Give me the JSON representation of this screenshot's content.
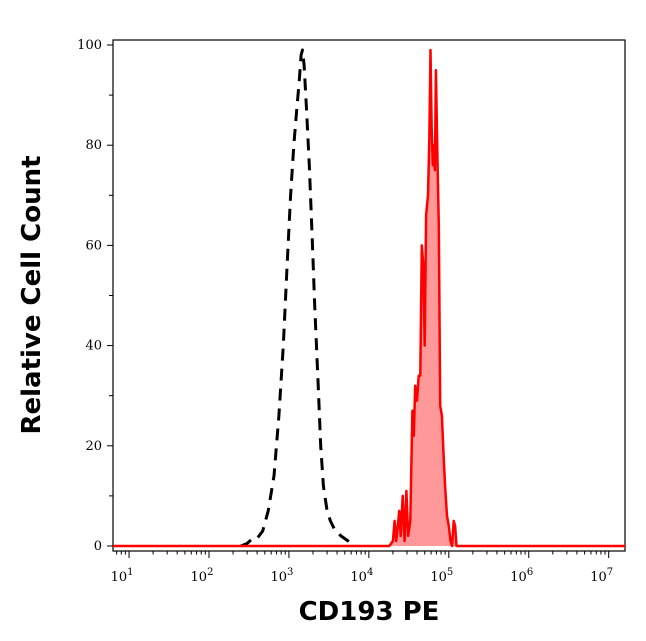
{
  "chart_data": {
    "type": "area",
    "xlabel": "CD193 PE",
    "ylabel": "Relative Cell Count",
    "xscale": "log",
    "xlim": [
      6.3,
      16000000
    ],
    "ylim": [
      -1,
      101
    ],
    "x_ticks": [
      {
        "base": "10",
        "exp": "1",
        "value": 10
      },
      {
        "base": "10",
        "exp": "2",
        "value": 100
      },
      {
        "base": "10",
        "exp": "3",
        "value": 1000
      },
      {
        "base": "10",
        "exp": "4",
        "value": 10000
      },
      {
        "base": "10",
        "exp": "5",
        "value": 100000
      },
      {
        "base": "10",
        "exp": "6",
        "value": 1000000
      },
      {
        "base": "10",
        "exp": "7",
        "value": 10000000
      }
    ],
    "y_ticks": [
      "0",
      "20",
      "40",
      "60",
      "80",
      "100"
    ],
    "grid": false,
    "legend": "none",
    "series": [
      {
        "style": "dashed",
        "color": "#000000",
        "fill": "none",
        "points": [
          [
            250,
            0
          ],
          [
            300,
            0.5
          ],
          [
            350,
            1.5
          ],
          [
            400,
            1.5
          ],
          [
            470,
            3
          ],
          [
            550,
            7
          ],
          [
            650,
            14
          ],
          [
            750,
            26
          ],
          [
            850,
            40
          ],
          [
            950,
            56
          ],
          [
            1050,
            70
          ],
          [
            1150,
            80
          ],
          [
            1250,
            87
          ],
          [
            1350,
            93
          ],
          [
            1420,
            98
          ],
          [
            1480,
            99
          ],
          [
            1550,
            96
          ],
          [
            1650,
            88
          ],
          [
            1800,
            76
          ],
          [
            1950,
            62
          ],
          [
            2100,
            48
          ],
          [
            2300,
            34
          ],
          [
            2500,
            20
          ],
          [
            2700,
            12
          ],
          [
            3000,
            7
          ],
          [
            3300,
            5
          ],
          [
            3800,
            3
          ],
          [
            4500,
            2
          ],
          [
            5500,
            1
          ],
          [
            6500,
            0
          ]
        ]
      },
      {
        "style": "solid",
        "color": "#ff0000",
        "fill": "#ff9999",
        "points": [
          [
            6.3,
            0
          ],
          [
            100,
            0
          ],
          [
            1000,
            0
          ],
          [
            10000,
            0
          ],
          [
            18000,
            0
          ],
          [
            20000,
            1
          ],
          [
            21000,
            5
          ],
          [
            22000,
            1
          ],
          [
            24000,
            7
          ],
          [
            25000,
            2
          ],
          [
            26500,
            10
          ],
          [
            28000,
            1
          ],
          [
            29500,
            11
          ],
          [
            31000,
            2
          ],
          [
            33000,
            5
          ],
          [
            35000,
            27
          ],
          [
            36500,
            22
          ],
          [
            38000,
            32
          ],
          [
            40000,
            29
          ],
          [
            42000,
            34
          ],
          [
            44000,
            34
          ],
          [
            46000,
            60
          ],
          [
            48000,
            56
          ],
          [
            50000,
            40
          ],
          [
            52000,
            66
          ],
          [
            55000,
            70
          ],
          [
            57000,
            81
          ],
          [
            59000,
            99
          ],
          [
            61000,
            84
          ],
          [
            63000,
            76
          ],
          [
            65000,
            80
          ],
          [
            67000,
            75
          ],
          [
            69000,
            95
          ],
          [
            72000,
            78
          ],
          [
            75000,
            64
          ],
          [
            78000,
            28
          ],
          [
            82000,
            26
          ],
          [
            86000,
            18
          ],
          [
            90000,
            12
          ],
          [
            95000,
            6
          ],
          [
            100000,
            4
          ],
          [
            105000,
            1
          ],
          [
            110000,
            0
          ],
          [
            115000,
            5
          ],
          [
            120000,
            4
          ],
          [
            125000,
            0
          ],
          [
            1000000,
            0
          ],
          [
            16000000,
            0
          ]
        ]
      }
    ]
  }
}
